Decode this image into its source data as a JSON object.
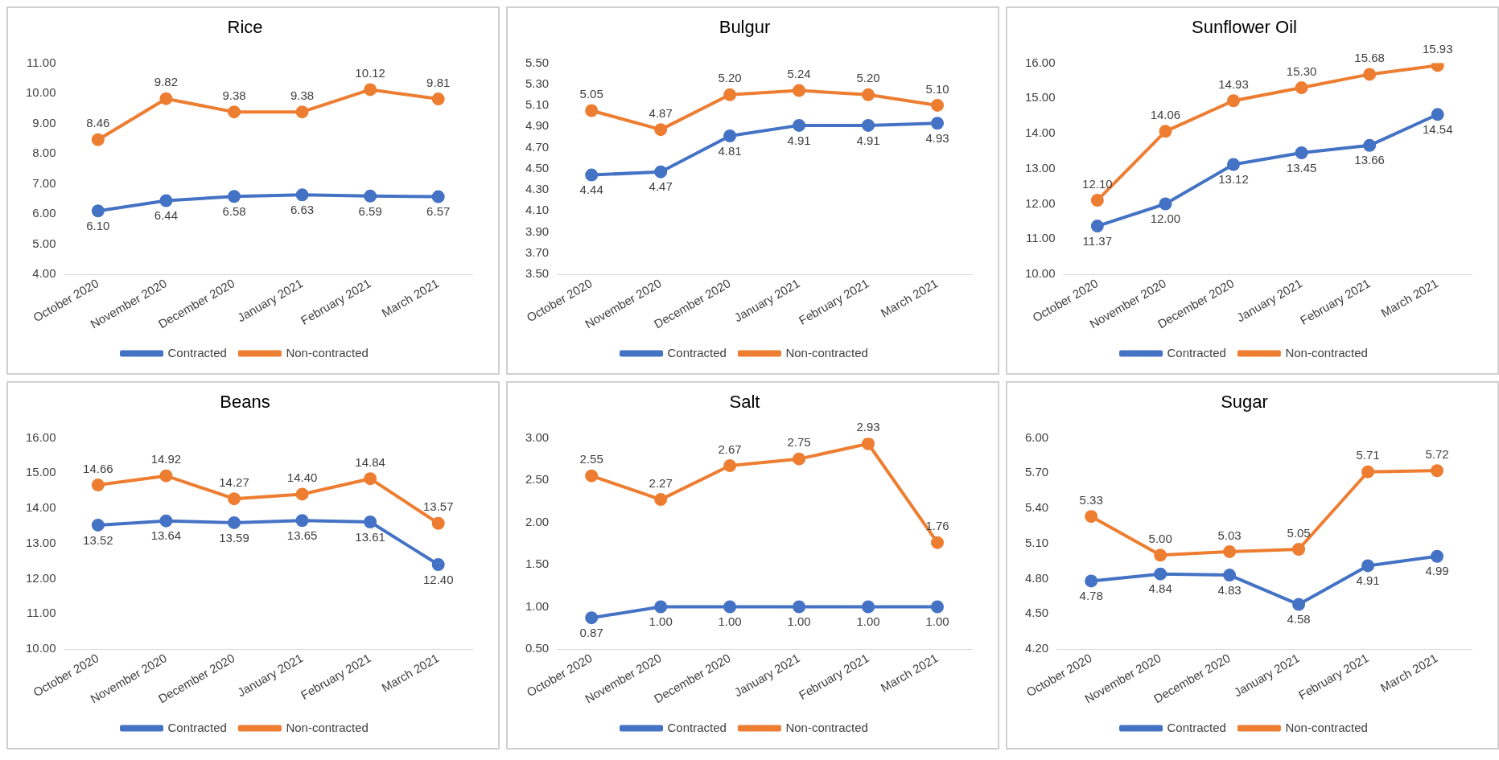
{
  "chart_data": [
    {
      "type": "line",
      "title": "Rice",
      "categories": [
        "October 2020",
        "November 2020",
        "December 2020",
        "January 2021",
        "February 2021",
        "March 2021"
      ],
      "series": [
        {
          "name": "Contracted",
          "color": "#4472c4",
          "values": [
            6.1,
            6.44,
            6.58,
            6.63,
            6.59,
            6.57
          ],
          "value_labels": [
            "6.10",
            "6.44",
            "6.58",
            "6.63",
            "6.59",
            "6.57"
          ]
        },
        {
          "name": "Non-contracted",
          "color": "#ed7d31",
          "values": [
            8.46,
            9.82,
            9.38,
            9.38,
            10.12,
            9.81
          ],
          "value_labels": [
            "8.46",
            "9.82",
            "9.38",
            "9.38",
            "10.12",
            "9.81"
          ]
        }
      ],
      "ylim": [
        4,
        11
      ],
      "yticks": [
        {
          "value": 4,
          "label": "4.00"
        },
        {
          "value": 5,
          "label": "5.00"
        },
        {
          "value": 6,
          "label": "6.00"
        },
        {
          "value": 7,
          "label": "7.00"
        },
        {
          "value": 8,
          "label": "8.00"
        },
        {
          "value": 9,
          "label": "9.00"
        },
        {
          "value": 10,
          "label": "10.00"
        },
        {
          "value": 11,
          "label": "11.00"
        }
      ],
      "legend": "bottom",
      "marker": "circle"
    },
    {
      "type": "line",
      "title": "Bulgur",
      "categories": [
        "October 2020",
        "November 2020",
        "December 2020",
        "January 2021",
        "February 2021",
        "March 2021"
      ],
      "series": [
        {
          "name": "Contracted",
          "color": "#4472c4",
          "values": [
            4.44,
            4.47,
            4.81,
            4.91,
            4.91,
            4.93
          ],
          "value_labels": [
            "4.44",
            "4.47",
            "4.81",
            "4.91",
            "4.91",
            "4.93"
          ]
        },
        {
          "name": "Non-contracted",
          "color": "#ed7d31",
          "values": [
            5.05,
            4.87,
            5.2,
            5.24,
            5.2,
            5.1
          ],
          "value_labels": [
            "5.05",
            "4.87",
            "5.20",
            "5.24",
            "5.20",
            "5.10"
          ]
        }
      ],
      "ylim": [
        3.5,
        5.5
      ],
      "yticks": [
        {
          "value": 3.5,
          "label": "3.50"
        },
        {
          "value": 3.7,
          "label": "3.70"
        },
        {
          "value": 3.9,
          "label": "3.90"
        },
        {
          "value": 4.1,
          "label": "4.10"
        },
        {
          "value": 4.3,
          "label": "4.30"
        },
        {
          "value": 4.5,
          "label": "4.50"
        },
        {
          "value": 4.7,
          "label": "4.70"
        },
        {
          "value": 4.9,
          "label": "4.90"
        },
        {
          "value": 5.1,
          "label": "5.10"
        },
        {
          "value": 5.3,
          "label": "5.30"
        },
        {
          "value": 5.5,
          "label": "5.50"
        }
      ],
      "legend": "bottom",
      "marker": "circle"
    },
    {
      "type": "line",
      "title": "Sunflower Oil",
      "categories": [
        "October 2020",
        "November 2020",
        "December 2020",
        "January 2021",
        "February 2021",
        "March 2021"
      ],
      "series": [
        {
          "name": "Contracted",
          "color": "#4472c4",
          "values": [
            11.37,
            12.0,
            13.12,
            13.45,
            13.66,
            14.54
          ],
          "value_labels": [
            "11.37",
            "12.00",
            "13.12",
            "13.45",
            "13.66",
            "14.54"
          ]
        },
        {
          "name": "Non-contracted",
          "color": "#ed7d31",
          "values": [
            12.1,
            14.06,
            14.93,
            15.3,
            15.68,
            15.93
          ],
          "value_labels": [
            "12.10",
            "14.06",
            "14.93",
            "15.30",
            "15.68",
            "15.93"
          ]
        }
      ],
      "ylim": [
        10,
        16
      ],
      "yticks": [
        {
          "value": 10,
          "label": "10.00"
        },
        {
          "value": 11,
          "label": "11.00"
        },
        {
          "value": 12,
          "label": "12.00"
        },
        {
          "value": 13,
          "label": "13.00"
        },
        {
          "value": 14,
          "label": "14.00"
        },
        {
          "value": 15,
          "label": "15.00"
        },
        {
          "value": 16,
          "label": "16.00"
        }
      ],
      "legend": "bottom",
      "marker": "circle"
    },
    {
      "type": "line",
      "title": "Beans",
      "categories": [
        "October 2020",
        "November 2020",
        "December 2020",
        "January 2021",
        "February 2021",
        "March 2021"
      ],
      "series": [
        {
          "name": "Contracted",
          "color": "#4472c4",
          "values": [
            13.52,
            13.64,
            13.59,
            13.65,
            13.61,
            12.4
          ],
          "value_labels": [
            "13.52",
            "13.64",
            "13.59",
            "13.65",
            "13.61",
            "12.40"
          ]
        },
        {
          "name": "Non-contracted",
          "color": "#ed7d31",
          "values": [
            14.66,
            14.92,
            14.27,
            14.4,
            14.84,
            13.57
          ],
          "value_labels": [
            "14.66",
            "14.92",
            "14.27",
            "14.40",
            "14.84",
            "13.57"
          ]
        }
      ],
      "ylim": [
        10,
        16
      ],
      "yticks": [
        {
          "value": 10,
          "label": "10.00"
        },
        {
          "value": 11,
          "label": "11.00"
        },
        {
          "value": 12,
          "label": "12.00"
        },
        {
          "value": 13,
          "label": "13.00"
        },
        {
          "value": 14,
          "label": "14.00"
        },
        {
          "value": 15,
          "label": "15.00"
        },
        {
          "value": 16,
          "label": "16.00"
        }
      ],
      "legend": "bottom",
      "marker": "circle"
    },
    {
      "type": "line",
      "title": "Salt",
      "categories": [
        "October 2020",
        "November 2020",
        "December 2020",
        "January 2021",
        "February 2021",
        "March 2021"
      ],
      "series": [
        {
          "name": "Contracted",
          "color": "#4472c4",
          "values": [
            0.87,
            1.0,
            1.0,
            1.0,
            1.0,
            1.0
          ],
          "value_labels": [
            "0.87",
            "1.00",
            "1.00",
            "1.00",
            "1.00",
            "1.00"
          ]
        },
        {
          "name": "Non-contracted",
          "color": "#ed7d31",
          "values": [
            2.55,
            2.27,
            2.67,
            2.75,
            2.93,
            1.76
          ],
          "value_labels": [
            "2.55",
            "2.27",
            "2.67",
            "2.75",
            "2.93",
            "1.76"
          ]
        }
      ],
      "ylim": [
        0.5,
        3
      ],
      "yticks": [
        {
          "value": 0.5,
          "label": "0.50"
        },
        {
          "value": 1,
          "label": "1.00"
        },
        {
          "value": 1.5,
          "label": "1.50"
        },
        {
          "value": 2,
          "label": "2.00"
        },
        {
          "value": 2.5,
          "label": "2.50"
        },
        {
          "value": 3,
          "label": "3.00"
        }
      ],
      "legend": "bottom",
      "marker": "circle"
    },
    {
      "type": "line",
      "title": "Sugar",
      "categories": [
        "October 2020",
        "November 2020",
        "December 2020",
        "January 2021",
        "February 2021",
        "March 2021"
      ],
      "series": [
        {
          "name": "Contracted",
          "color": "#4472c4",
          "values": [
            4.78,
            4.84,
            4.83,
            4.58,
            4.91,
            4.99
          ],
          "value_labels": [
            "4.78",
            "4.84",
            "4.83",
            "4.58",
            "4.91",
            "4.99"
          ]
        },
        {
          "name": "Non-contracted",
          "color": "#ed7d31",
          "values": [
            5.33,
            5.0,
            5.03,
            5.05,
            5.71,
            5.72
          ],
          "value_labels": [
            "5.33",
            "5.00",
            "5.03",
            "5.05",
            "5.71",
            "5.72"
          ]
        }
      ],
      "ylim": [
        4.2,
        6
      ],
      "yticks": [
        {
          "value": 4.2,
          "label": "4.20"
        },
        {
          "value": 4.5,
          "label": "4.50"
        },
        {
          "value": 4.8,
          "label": "4.80"
        },
        {
          "value": 5.1,
          "label": "5.10"
        },
        {
          "value": 5.4,
          "label": "5.40"
        },
        {
          "value": 5.7,
          "label": "5.70"
        },
        {
          "value": 6,
          "label": "6.00"
        }
      ],
      "legend": "bottom",
      "marker": "circle"
    }
  ]
}
